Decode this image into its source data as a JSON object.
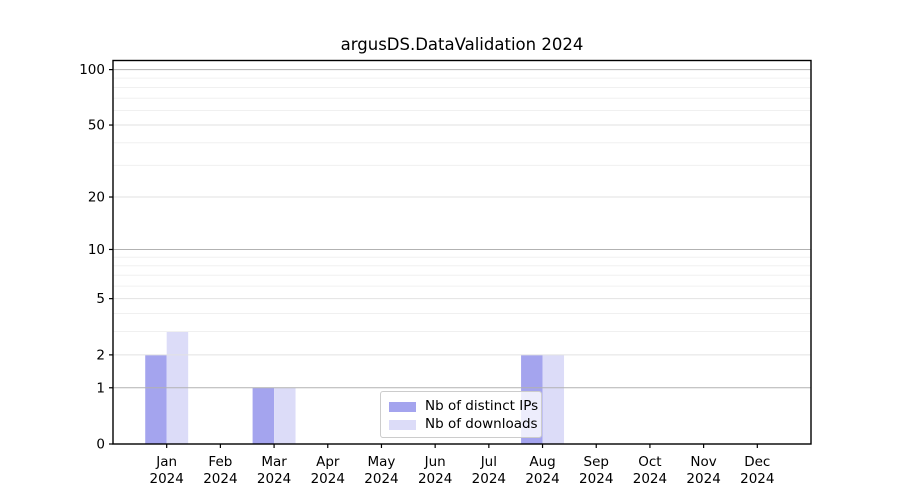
{
  "chart_data": {
    "type": "bar",
    "title": "argusDS.DataValidation 2024",
    "categories": [
      "Jan 2024",
      "Feb 2024",
      "Mar 2024",
      "Apr 2024",
      "May 2024",
      "Jun 2024",
      "Jul 2024",
      "Aug 2024",
      "Sep 2024",
      "Oct 2024",
      "Nov 2024",
      "Dec 2024"
    ],
    "series": [
      {
        "name": "Nb of distinct IPs",
        "color": "#a4a4ee",
        "values": [
          2,
          0,
          1,
          0,
          0,
          0,
          0,
          2,
          0,
          0,
          0,
          0
        ]
      },
      {
        "name": "Nb of downloads",
        "color": "#dcdcf8",
        "values": [
          3,
          0,
          1,
          0,
          0,
          0,
          0,
          2,
          0,
          0,
          0,
          0
        ]
      }
    ],
    "y_axis": {
      "scale": "log1p",
      "tick_labels": [
        0,
        1,
        2,
        5,
        10,
        20,
        50,
        100
      ],
      "ylim": [
        0,
        112
      ],
      "major_gridlines": [
        1,
        10,
        100
      ],
      "mid_gridlines": [
        2,
        5,
        20,
        50
      ],
      "minor_gridlines": [
        3,
        4,
        6,
        7,
        8,
        9,
        30,
        40,
        60,
        70,
        80,
        90
      ],
      "grid_color_major": "#b2b2b2",
      "grid_color_mid": "#e2e2e2",
      "grid_color_minor": "#f0f0f0"
    },
    "x_axis": {
      "tick_labels_line2": "2024"
    },
    "legend": {
      "position": "lower center",
      "border_color": "#cccccc"
    },
    "grid": true
  }
}
